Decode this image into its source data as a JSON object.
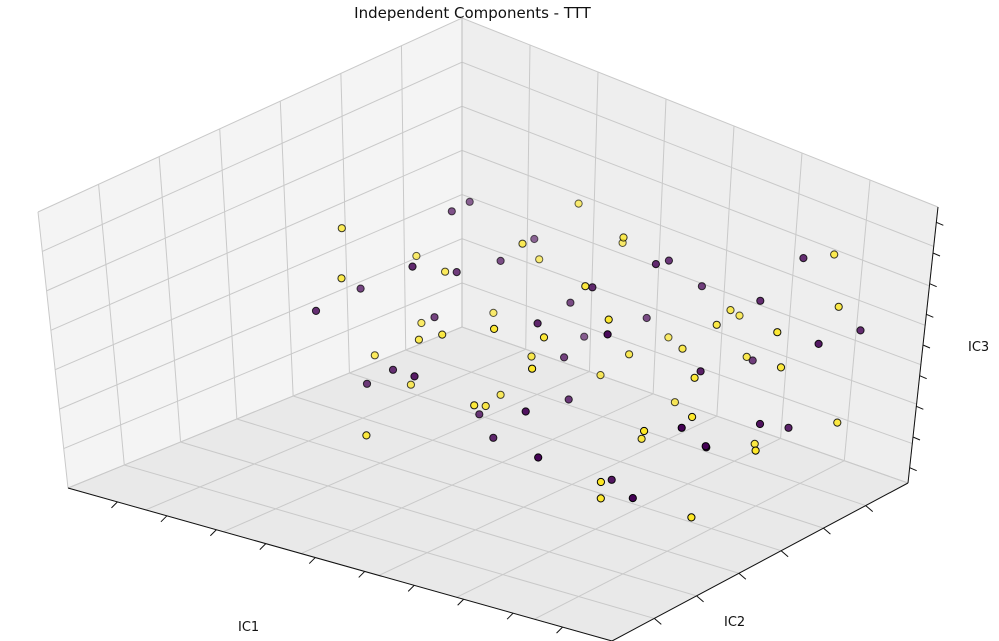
{
  "chart_data": {
    "type": "scatter",
    "title": "Independent Components - TTT",
    "xlabel": "IC1",
    "ylabel": "IC2",
    "zlabel": "IC3",
    "projection": "3d",
    "grid": true,
    "tick_labels_shown": false,
    "colormap": "viridis",
    "class_colors": [
      "#440154",
      "#fde725"
    ],
    "marker_edge_color": "#000000",
    "series": [
      {
        "values": [
          [
            0.86,
            0.55,
            0.42
          ],
          [
            0.31,
            0.19,
            0.63
          ],
          [
            0.72,
            0.09,
            0.21
          ],
          [
            0.48,
            0.91,
            0.34
          ],
          [
            0.12,
            0.44,
            0.38
          ],
          [
            0.95,
            0.33,
            0.52
          ],
          [
            0.24,
            0.78,
            0.73
          ],
          [
            0.57,
            0.28,
            0.08
          ],
          [
            0.07,
            0.93,
            0.57
          ],
          [
            0.41,
            0.62,
            0.92
          ],
          [
            0.88,
            0.82,
            0.16
          ],
          [
            0.19,
            0.05,
            0.77
          ],
          [
            0.66,
            0.47,
            0.69
          ],
          [
            0.34,
            0.36,
            0.27
          ],
          [
            0.79,
            0.71,
            0.85
          ],
          [
            0.03,
            0.24,
            0.12
          ],
          [
            0.53,
            0.15,
            0.46
          ],
          [
            0.97,
            0.64,
            0.31
          ],
          [
            0.28,
            0.87,
            0.18
          ],
          [
            0.62,
            0.02,
            0.58
          ],
          [
            0.15,
            0.59,
            0.64
          ],
          [
            0.45,
            0.75,
            0.49
          ],
          [
            0.83,
            0.26,
            0.95
          ],
          [
            0.09,
            0.68,
            0.29
          ],
          [
            0.71,
            0.39,
            0.11
          ],
          [
            0.38,
            0.11,
            0.87
          ],
          [
            0.92,
            0.96,
            0.61
          ],
          [
            0.22,
            0.31,
            0.44
          ],
          [
            0.59,
            0.84,
            0.25
          ],
          [
            0.05,
            0.13,
            0.55
          ],
          [
            0.49,
            0.51,
            0.79
          ],
          [
            0.77,
            0.18,
            0.36
          ],
          [
            0.33,
            0.97,
            0.68
          ],
          [
            0.68,
            0.66,
            0.04
          ],
          [
            0.14,
            0.83,
            0.91
          ],
          [
            0.91,
            0.07,
            0.67
          ],
          [
            0.43,
            0.42,
            0.15
          ],
          [
            0.26,
            0.57,
            0.82
          ],
          [
            0.74,
            0.92,
            0.39
          ],
          [
            0.56,
            0.22,
            0.74
          ]
        ]
      },
      {
        "values": [
          [
            0.12,
            0.18,
            0.52
          ],
          [
            0.85,
            0.42,
            0.37
          ],
          [
            0.36,
            0.74,
            0.66
          ],
          [
            0.63,
            0.06,
            0.28
          ],
          [
            0.02,
            0.61,
            0.43
          ],
          [
            0.94,
            0.88,
            0.56
          ],
          [
            0.47,
            0.33,
            0.89
          ],
          [
            0.21,
            0.95,
            0.21
          ],
          [
            0.76,
            0.54,
            0.72
          ],
          [
            0.58,
            0.12,
            0.14
          ],
          [
            0.29,
            0.49,
            0.33
          ],
          [
            0.82,
            0.71,
            0.06
          ],
          [
            0.11,
            0.27,
            0.84
          ],
          [
            0.69,
            0.86,
            0.47
          ],
          [
            0.39,
            0.03,
            0.61
          ],
          [
            0.98,
            0.23,
            0.19
          ],
          [
            0.17,
            0.67,
            0.58
          ],
          [
            0.54,
            0.39,
            0.41
          ],
          [
            0.87,
            0.11,
            0.83
          ],
          [
            0.32,
            0.81,
            0.09
          ],
          [
            0.65,
            0.58,
            0.93
          ],
          [
            0.06,
            0.46,
            0.26
          ],
          [
            0.44,
            0.93,
            0.78
          ],
          [
            0.79,
            0.31,
            0.62
          ],
          [
            0.25,
            0.14,
            0.31
          ],
          [
            0.93,
            0.77,
            0.24
          ],
          [
            0.51,
            0.64,
            0.13
          ],
          [
            0.13,
            0.91,
            0.71
          ],
          [
            0.71,
            0.21,
            0.49
          ],
          [
            0.37,
            0.52,
            0.97
          ],
          [
            0.61,
            0.97,
            0.32
          ],
          [
            0.08,
            0.36,
            0.68
          ],
          [
            0.89,
            0.49,
            0.81
          ],
          [
            0.42,
            0.25,
            0.07
          ],
          [
            0.19,
            0.72,
            0.39
          ],
          [
            0.74,
            0.04,
            0.96
          ],
          [
            0.55,
            0.79,
            0.54
          ],
          [
            0.27,
            0.41,
            0.17
          ],
          [
            0.96,
            0.62,
            0.73
          ],
          [
            0.46,
            0.08,
            0.35
          ],
          [
            0.04,
            0.85,
            0.88
          ],
          [
            0.67,
            0.35,
            0.22
          ],
          [
            0.31,
            0.63,
            0.45
          ],
          [
            0.84,
            0.94,
            0.11
          ],
          [
            0.52,
            0.17,
            0.69
          ],
          [
            0.16,
            0.53,
            0.04
          ],
          [
            0.73,
            0.68,
            0.87
          ],
          [
            0.35,
            0.89,
            0.53
          ]
        ]
      }
    ]
  }
}
